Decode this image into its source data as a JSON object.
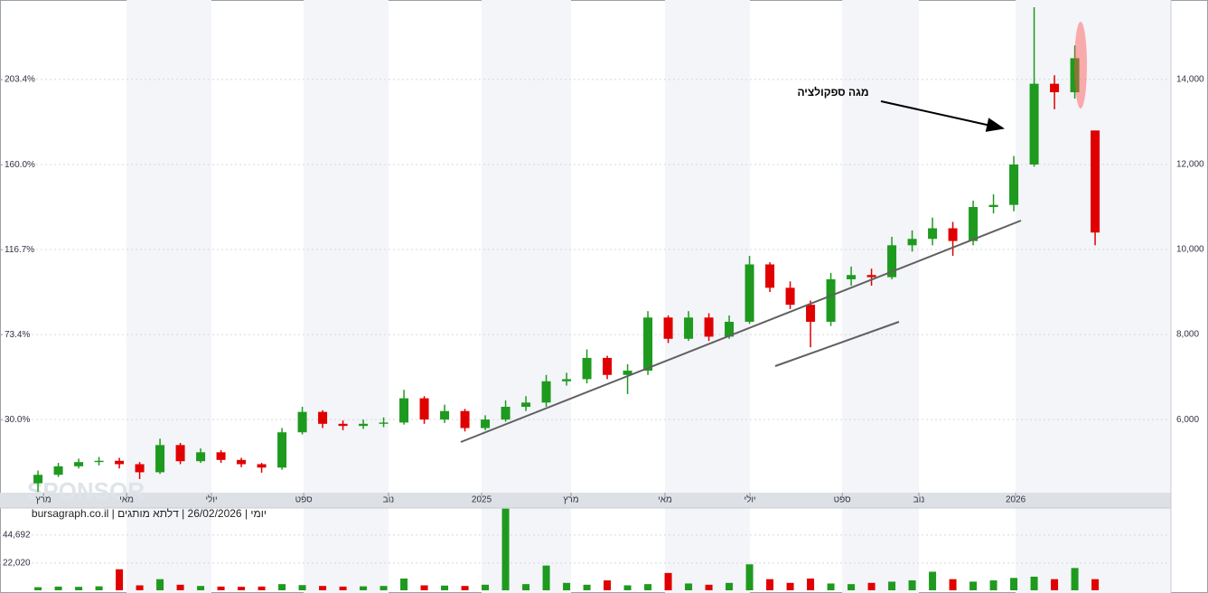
{
  "chart_data": {
    "type": "candlestick",
    "annotation": "מגה ספקולציה",
    "footer": "יומי | 26/02/2026 | דלתא מותגים | bursagraph.co.il",
    "watermark": "SPONSOR",
    "up_color": "#1e9a1e",
    "down_color": "#e00000",
    "grid": true,
    "xlim": [
      -1.87,
      55.73
    ],
    "xticks": [
      {
        "value": 0.27,
        "label": "מרץ"
      },
      {
        "value": 4.36,
        "label": "מאי"
      },
      {
        "value": 8.53,
        "label": "יולי"
      },
      {
        "value": 13.07,
        "label": "ספט"
      },
      {
        "value": 17.24,
        "label": "נוב"
      },
      {
        "value": 21.82,
        "label": "2025"
      },
      {
        "value": 26.22,
        "label": "מרץ"
      },
      {
        "value": 30.84,
        "label": "מאי"
      },
      {
        "value": 35.02,
        "label": "יולי"
      },
      {
        "value": 39.56,
        "label": "ספט"
      },
      {
        "value": 43.33,
        "label": "נוב"
      },
      {
        "value": 48.09,
        "label": "2026"
      }
    ],
    "ylim": [
      4280,
      15870
    ],
    "yticks": [
      {
        "value": 6000,
        "label": "6,000"
      },
      {
        "value": 8000,
        "label": "8,000"
      },
      {
        "value": 10000,
        "label": "10,000"
      },
      {
        "value": 12000,
        "label": "12,000"
      },
      {
        "value": 14000,
        "label": "14,000"
      }
    ],
    "y2lim": [
      -7.2,
      244.0
    ],
    "y2ticks": [
      {
        "value": 30.0,
        "label": "30.0%"
      },
      {
        "value": 73.4,
        "label": "73.4%"
      },
      {
        "value": 116.7,
        "label": "116.7%"
      },
      {
        "value": 160.0,
        "label": "160.0%"
      },
      {
        "value": 203.4,
        "label": "203.4%"
      }
    ],
    "open": [
      4500,
      4700,
      4900,
      5000,
      5030,
      4950,
      4760,
      5400,
      5020,
      5230,
      5050,
      4950,
      4870,
      5700,
      6180,
      5900,
      5850,
      5900,
      5930,
      6500,
      6000,
      6200,
      5800,
      6000,
      6300,
      6400,
      6900,
      6950,
      7450,
      7050,
      7150,
      8400,
      7900,
      8400,
      7950,
      8300,
      9650,
      9100,
      8700,
      8300,
      9300,
      9400,
      9350,
      10100,
      10250,
      10500,
      10200,
      11000,
      11050,
      12000,
      13900,
      13700,
      12800
    ],
    "high": [
      4800,
      4980,
      5080,
      5120,
      5100,
      5000,
      5550,
      5450,
      5320,
      5280,
      5100,
      4980,
      5800,
      6300,
      6220,
      5980,
      6000,
      6050,
      6700,
      6550,
      6350,
      6250,
      6100,
      6450,
      6550,
      7050,
      7100,
      7650,
      7500,
      7300,
      8550,
      8450,
      8550,
      8500,
      8450,
      9850,
      9700,
      9250,
      8800,
      9450,
      9600,
      9550,
      10300,
      10450,
      10750,
      10650,
      11150,
      11300,
      12200,
      15700,
      14100,
      14800,
      12800
    ],
    "low": [
      4300,
      4650,
      4850,
      4920,
      4850,
      4600,
      4720,
      4950,
      4980,
      4980,
      4880,
      4750,
      4820,
      5650,
      5800,
      5750,
      5780,
      5820,
      5880,
      5900,
      5920,
      5720,
      5750,
      5950,
      6200,
      6300,
      6800,
      6850,
      6950,
      6600,
      7050,
      7800,
      7850,
      7850,
      7900,
      8250,
      9000,
      8600,
      7700,
      8200,
      9150,
      9150,
      9300,
      9950,
      10100,
      9850,
      10100,
      10850,
      10900,
      11950,
      13300,
      13550,
      10100
    ],
    "close": [
      4700,
      4900,
      5000,
      5030,
      4950,
      4760,
      5400,
      5020,
      5230,
      5050,
      4950,
      4870,
      5700,
      6180,
      5900,
      5850,
      5900,
      5930,
      6500,
      6000,
      6200,
      5800,
      6000,
      6300,
      6400,
      6900,
      6950,
      7450,
      7050,
      7150,
      8400,
      7900,
      8400,
      7950,
      8300,
      9650,
      9100,
      8700,
      8300,
      9300,
      9400,
      9350,
      10100,
      10250,
      10500,
      10200,
      11000,
      11050,
      12000,
      13900,
      13700,
      14500,
      10400
    ],
    "volume": {
      "ylim": [
        0,
        66500
      ],
      "yticks": [
        {
          "value": 22020,
          "label": "22,020"
        },
        {
          "value": 44692,
          "label": "44,692"
        }
      ],
      "values": [
        2500,
        3000,
        2800,
        3200,
        17000,
        4000,
        9000,
        4500,
        3500,
        3000,
        2800,
        3000,
        5000,
        4200,
        3500,
        3000,
        3200,
        3500,
        9500,
        4000,
        3800,
        3500,
        4500,
        66000,
        5000,
        20000,
        6000,
        4500,
        8000,
        4000,
        5000,
        14000,
        5500,
        4500,
        6000,
        21000,
        9000,
        6000,
        9500,
        5500,
        5000,
        6000,
        7000,
        8000,
        15000,
        9000,
        7000,
        8000,
        10000,
        11000,
        9000,
        18000,
        9000
      ]
    }
  }
}
